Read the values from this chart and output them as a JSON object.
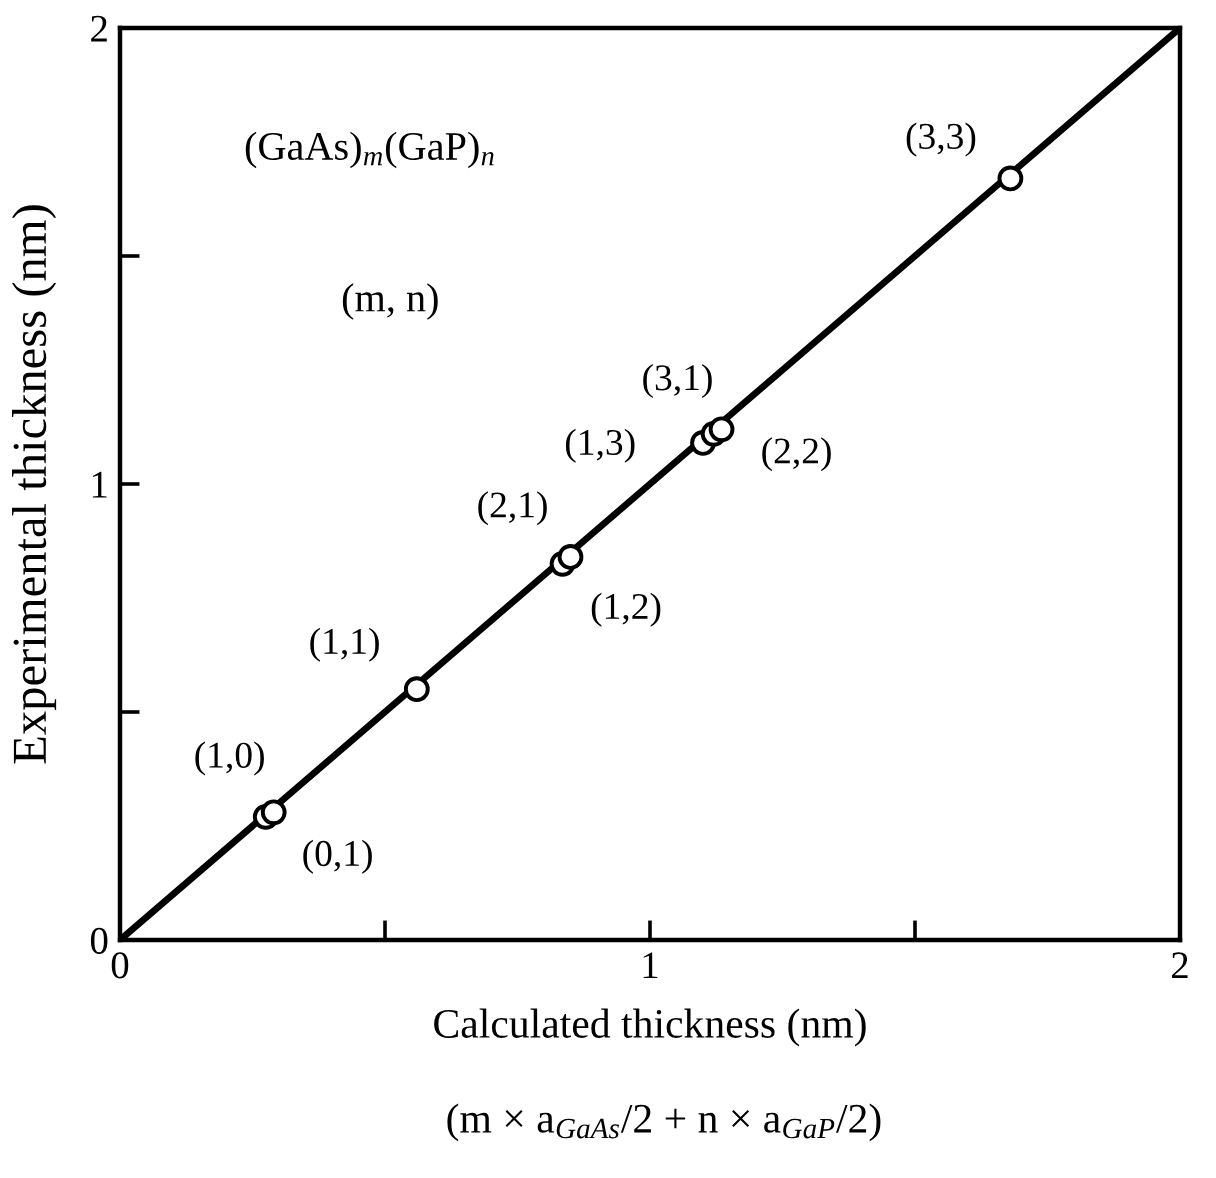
{
  "chart_data": {
    "type": "scatter",
    "xlabel": "Calculated thickness (nm)",
    "ylabel": "Experimental thickness (nm)",
    "xlim": [
      0,
      2
    ],
    "ylim": [
      0,
      2
    ],
    "xticks": [
      0,
      {
        "value": 0.5,
        "label": null
      },
      1,
      {
        "value": 1.5,
        "label": null
      },
      2
    ],
    "yticks": [
      0,
      {
        "value": 0.5,
        "label": null
      },
      1,
      {
        "value": 1.5,
        "label": null
      },
      2
    ],
    "series": [
      {
        "type": "line",
        "color": "#000000",
        "line_style": "solid",
        "x": [
          0,
          2
        ],
        "values": [
          0,
          2
        ]
      },
      {
        "color": "#000000",
        "marker": "circle",
        "x": [
          0.275,
          0.29,
          0.56,
          0.835,
          0.85,
          1.1,
          1.12,
          1.135,
          1.68
        ],
        "values": [
          0.27,
          0.28,
          0.55,
          0.825,
          0.84,
          1.09,
          1.11,
          1.12,
          1.67
        ]
      }
    ],
    "annotations": [
      "(GaAs)$_{m}$(GaP)$_{n}$",
      "(m, n)",
      "(m × a$_{GaAs}$/2 + n × a$_{GaP}$/2)",
      {
        "text": "(1,0)",
        "x": 0.275,
        "y": 0.27
      },
      {
        "text": "(0,1)",
        "x": 0.29,
        "y": 0.28
      },
      {
        "text": "(1,1)",
        "x": 0.56,
        "y": 0.55
      },
      {
        "text": "(2,1)",
        "x": 0.835,
        "y": 0.825
      },
      {
        "text": "(1,2)",
        "x": 0.85,
        "y": 0.84
      },
      {
        "text": "(1,3)",
        "x": 1.1,
        "y": 1.09
      },
      {
        "text": "(3,1)",
        "x": 1.12,
        "y": 1.11
      },
      {
        "text": "(2,2)",
        "x": 1.135,
        "y": 1.12
      },
      {
        "text": "(3,3)",
        "x": 1.68,
        "y": 1.67
      }
    ]
  }
}
